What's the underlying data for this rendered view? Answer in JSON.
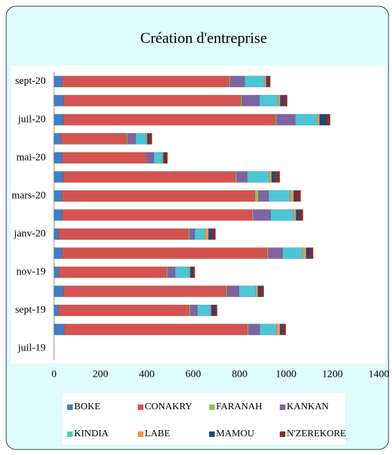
{
  "chart_data": {
    "type": "stacked-barh",
    "title": "Création d'entreprise",
    "categories": [
      "juil-19",
      null,
      "sept-19",
      null,
      "nov-19",
      null,
      "janv-20",
      null,
      "mars-20",
      null,
      "mai-20",
      null,
      "juil-20",
      null,
      "sept-20"
    ],
    "series": [
      {
        "name": "BOKE",
        "color": "#3f7fc6",
        "values": [
          null,
          45,
          20,
          40,
          20,
          35,
          20,
          35,
          35,
          40,
          35,
          30,
          40,
          40,
          35
        ]
      },
      {
        "name": "CONAKRY",
        "color": "#d45350",
        "values": [
          null,
          788,
          562,
          700,
          464,
          884,
          559,
          819,
          831,
          742,
          362,
          283,
          915,
          765,
          720
        ]
      },
      {
        "name": "FARANAH",
        "color": "#9bbb59",
        "values": [
          null,
          5,
          5,
          5,
          5,
          5,
          5,
          5,
          15,
          5,
          3,
          4,
          5,
          5,
          5
        ]
      },
      {
        "name": "KANKAN",
        "color": "#8064a2",
        "values": [
          null,
          49,
          31,
          52,
          33,
          61,
          22,
          75,
          44,
          46,
          30,
          35,
          80,
          75,
          62
        ]
      },
      {
        "name": "KINDIA",
        "color": "#4bc6d6",
        "values": [
          null,
          72,
          55,
          72,
          60,
          87,
          45,
          99,
          93,
          95,
          36,
          45,
          95,
          80,
          85
        ]
      },
      {
        "name": "LABE",
        "color": "#f79646",
        "values": [
          null,
          15,
          5,
          10,
          5,
          15,
          15,
          10,
          15,
          10,
          5,
          5,
          10,
          10,
          8
        ]
      },
      {
        "name": "MAMOU",
        "color": "#1f497d",
        "values": [
          null,
          10,
          15,
          10,
          10,
          15,
          15,
          15,
          10,
          15,
          8,
          8,
          30,
          15,
          5
        ]
      },
      {
        "name": "N'ZEREKORE",
        "color": "#8e2a28",
        "values": [
          null,
          15,
          10,
          15,
          10,
          15,
          15,
          15,
          20,
          20,
          10,
          12,
          15,
          15,
          12
        ]
      }
    ],
    "xlim": [
      0,
      1400
    ],
    "xticks": [
      0,
      200,
      400,
      600,
      800,
      1000,
      1200,
      1400
    ],
    "grid": false,
    "legend": "bottom"
  }
}
